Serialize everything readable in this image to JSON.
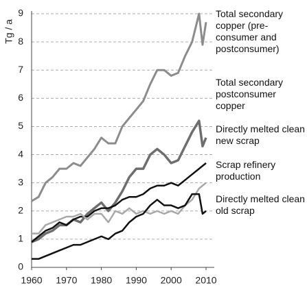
{
  "chart_data": {
    "type": "line",
    "y_label": "Tg / a",
    "x": [
      1960,
      1962,
      1964,
      1966,
      1968,
      1970,
      1972,
      1974,
      1976,
      1978,
      1980,
      1982,
      1984,
      1986,
      1988,
      1990,
      1992,
      1994,
      1996,
      1998,
      2000,
      2002,
      2004,
      2006,
      2008,
      2009,
      2010
    ],
    "series": [
      {
        "name": "Total secondary copper (pre-consumer and postconsumer)",
        "color": "#8c8c8c",
        "values": [
          2.35,
          2.5,
          3.0,
          3.2,
          3.5,
          3.5,
          3.7,
          3.6,
          3.9,
          4.2,
          4.6,
          4.4,
          4.4,
          5.0,
          5.3,
          5.6,
          5.9,
          6.5,
          7.0,
          7.0,
          6.8,
          6.9,
          7.5,
          8.0,
          9.0,
          7.9,
          8.7
        ]
      },
      {
        "name": "Total secondary postconsumer copper",
        "color": "#6e6e6e",
        "values": [
          0.9,
          1.0,
          1.2,
          1.3,
          1.5,
          1.5,
          1.7,
          1.6,
          1.9,
          2.1,
          2.3,
          2.0,
          2.3,
          2.7,
          3.2,
          3.5,
          3.5,
          4.0,
          4.2,
          4.0,
          3.7,
          3.8,
          4.3,
          4.8,
          5.2,
          4.3,
          4.6
        ]
      },
      {
        "name": "Directly melted clean new scrap",
        "color": "#111111",
        "values": [
          0.9,
          1.1,
          1.3,
          1.4,
          1.6,
          1.5,
          1.7,
          1.8,
          1.8,
          2.0,
          2.1,
          2.1,
          2.2,
          2.4,
          2.5,
          2.5,
          2.6,
          2.8,
          2.9,
          2.9,
          3.0,
          2.9,
          3.1,
          3.3,
          3.5,
          3.6,
          3.7
        ]
      },
      {
        "name": "Scrap refinery production",
        "color": "#a8a8a8",
        "values": [
          1.2,
          1.2,
          1.5,
          1.6,
          1.7,
          1.8,
          1.8,
          1.9,
          1.7,
          1.9,
          1.9,
          1.6,
          2.0,
          1.9,
          2.1,
          1.9,
          2.0,
          1.9,
          2.0,
          1.9,
          2.0,
          1.9,
          2.2,
          2.4,
          2.8,
          2.9,
          3.0
        ]
      },
      {
        "name": "Directly melted clean old scrap",
        "color": "#111111",
        "values": [
          0.3,
          0.3,
          0.4,
          0.5,
          0.6,
          0.7,
          0.8,
          0.8,
          0.9,
          1.0,
          1.1,
          1.0,
          1.2,
          1.3,
          1.6,
          1.8,
          1.9,
          2.2,
          2.4,
          2.2,
          2.2,
          2.1,
          2.2,
          2.6,
          2.6,
          1.9,
          2.0
        ]
      }
    ],
    "xlim": [
      1960,
      2010
    ],
    "xticks": [
      1960,
      1970,
      1980,
      1990,
      2000,
      2010
    ],
    "ylim": [
      0,
      9
    ],
    "yticks": [
      0,
      1,
      2,
      3,
      4,
      5,
      6,
      7,
      8,
      9
    ],
    "grid": true
  }
}
